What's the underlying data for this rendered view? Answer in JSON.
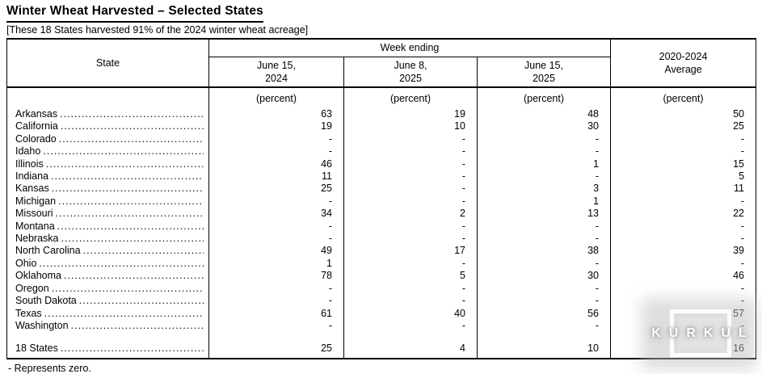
{
  "page": {
    "title": "Winter Wheat Harvested – Selected States",
    "subtitle": "[These 18 States harvested 91% of the 2024 winter wheat acreage]",
    "footnote": "- Represents zero."
  },
  "table": {
    "state_header": "State",
    "week_ending_header": "Week ending",
    "avg_header": {
      "line1": "2020-2024",
      "line2": "Average"
    },
    "date_columns": [
      {
        "line1": "June 15,",
        "line2": "2024"
      },
      {
        "line1": "June 8,",
        "line2": "2025"
      },
      {
        "line1": "June 15,",
        "line2": "2025"
      }
    ],
    "unit_label": "(percent)",
    "rows": [
      {
        "state": "Arkansas",
        "values": [
          "63",
          "19",
          "48",
          "50"
        ]
      },
      {
        "state": "California",
        "values": [
          "19",
          "10",
          "30",
          "25"
        ]
      },
      {
        "state": "Colorado",
        "values": [
          "-",
          "-",
          "-",
          "-"
        ]
      },
      {
        "state": "Idaho",
        "values": [
          "-",
          "-",
          "-",
          "-"
        ]
      },
      {
        "state": "Illinois",
        "values": [
          "46",
          "-",
          "1",
          "15"
        ]
      },
      {
        "state": "Indiana",
        "values": [
          "11",
          "-",
          "-",
          "5"
        ]
      },
      {
        "state": "Kansas",
        "values": [
          "25",
          "-",
          "3",
          "11"
        ]
      },
      {
        "state": "Michigan",
        "values": [
          "-",
          "-",
          "1",
          "-"
        ]
      },
      {
        "state": "Missouri",
        "values": [
          "34",
          "2",
          "13",
          "22"
        ]
      },
      {
        "state": "Montana",
        "values": [
          "-",
          "-",
          "-",
          "-"
        ]
      },
      {
        "state": "Nebraska",
        "values": [
          "-",
          "-",
          "-",
          "-"
        ]
      },
      {
        "state": "North Carolina",
        "values": [
          "49",
          "17",
          "38",
          "39"
        ]
      },
      {
        "state": "Ohio",
        "values": [
          "1",
          "-",
          "-",
          "-"
        ]
      },
      {
        "state": "Oklahoma",
        "values": [
          "78",
          "5",
          "30",
          "46"
        ]
      },
      {
        "state": "Oregon",
        "values": [
          "-",
          "-",
          "-",
          "-"
        ]
      },
      {
        "state": "South Dakota",
        "values": [
          "-",
          "-",
          "-",
          "-"
        ]
      },
      {
        "state": "Texas",
        "values": [
          "61",
          "40",
          "56",
          "57"
        ]
      },
      {
        "state": "Washington",
        "values": [
          "-",
          "-",
          "-",
          "-"
        ]
      }
    ],
    "total_row": {
      "state": "18 States",
      "values": [
        "25",
        "4",
        "10",
        "16"
      ]
    }
  },
  "watermark": {
    "text": "KURKUL"
  },
  "colors": {
    "text": "#000000",
    "border": "#000000",
    "background": "#ffffff",
    "watermark_glow": "#bebebe",
    "watermark_text": "#ffffff"
  }
}
